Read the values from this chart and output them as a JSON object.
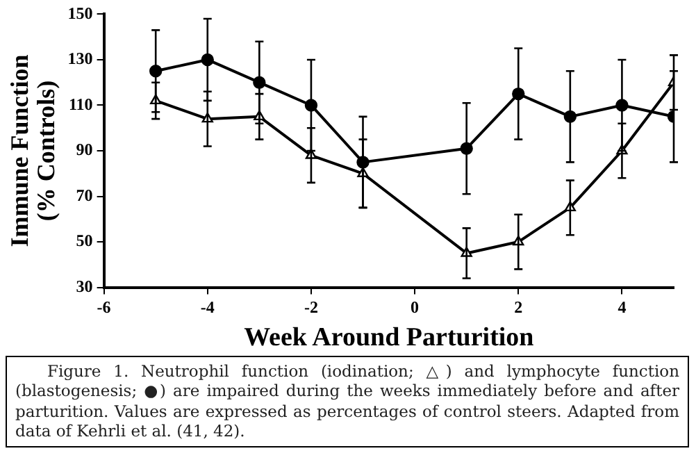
{
  "chart_data": {
    "type": "line",
    "xlabel": "Week Around Parturition",
    "ylabel": "Immune Function\n(% Controls)",
    "x": [
      -5,
      -4,
      -3,
      -2,
      -1,
      1,
      2,
      3,
      4,
      5
    ],
    "series": [
      {
        "color": "#000000",
        "marker": "circle",
        "values": [
          125,
          130,
          120,
          110,
          85,
          91,
          115,
          105,
          110,
          105
        ],
        "errors": [
          18,
          18,
          18,
          20,
          20,
          20,
          20,
          20,
          20,
          20
        ]
      },
      {
        "color": "#000000",
        "marker": "triangle",
        "values": [
          112,
          104,
          105,
          88,
          80,
          45,
          50,
          65,
          90,
          120
        ],
        "errors": [
          8,
          12,
          10,
          12,
          15,
          11,
          12,
          12,
          12,
          12
        ]
      }
    ],
    "xlim": [
      -6,
      5
    ],
    "xticks": [
      -6,
      -4,
      -2,
      0,
      2,
      4
    ],
    "ylim": [
      30,
      150
    ],
    "yticks": [
      30,
      50,
      70,
      90,
      110,
      130,
      150
    ],
    "grid": false,
    "legend": false,
    "annotations": [
      "Figure 1. Neutrophil function (iodination; △) and lymphocyte function (blastogenesis; ●) are impaired during the weeks immediately before and after parturition. Values are expressed as percentages of control steers. Adapted from data of Kehrli et al. (41, 42)."
    ]
  }
}
